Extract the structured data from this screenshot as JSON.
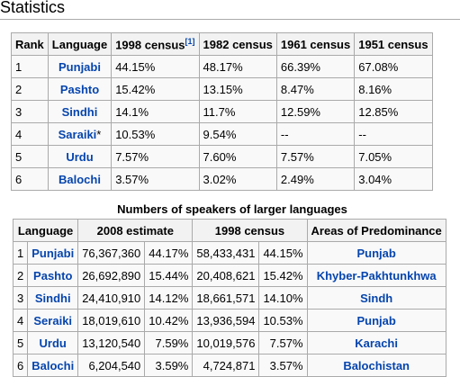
{
  "heading": "Statistics",
  "table1": {
    "headers": [
      "Rank",
      "Language",
      {
        "text": "1998 census",
        "note": "[1]"
      },
      "1982 census",
      "1961 census",
      "1951 census"
    ],
    "rows": [
      [
        "1",
        "Punjabi",
        "44.15%",
        "48.17%",
        "66.39%",
        "67.08%"
      ],
      [
        "2",
        "Pashto",
        "15.42%",
        "13.15%",
        "8.47%",
        "8.16%"
      ],
      [
        "3",
        "Sindhi",
        "14.1%",
        "11.7%",
        "12.59%",
        "12.85%"
      ],
      [
        "4",
        {
          "text": "Saraiki",
          "note": "*"
        },
        "10.53%",
        "9.54%",
        "--",
        "--"
      ],
      [
        "5",
        "Urdu",
        "7.57%",
        "7.60%",
        "7.57%",
        "7.05%"
      ],
      [
        "6",
        "Balochi",
        "3.57%",
        "3.02%",
        "2.49%",
        "3.04%"
      ]
    ]
  },
  "table2": {
    "caption": "Numbers of speakers of larger languages",
    "headers": [
      "Language",
      "2008 estimate",
      "1998 census",
      "Areas of Predominance"
    ],
    "rows": [
      [
        "1",
        "Punjabi",
        "76,367,360",
        "44.17%",
        "58,433,431",
        "44.15%",
        "Punjab"
      ],
      [
        "2",
        "Pashto",
        "26,692,890",
        "15.44%",
        "20,408,621",
        "15.42%",
        "Khyber-Pakhtunkhwa"
      ],
      [
        "3",
        "Sindhi",
        "24,410,910",
        "14.12%",
        "18,661,571",
        "14.10%",
        "Sindh"
      ],
      [
        "4",
        "Seraiki",
        "18,019,610",
        "10.42%",
        "13,936,594",
        "10.53%",
        "Punjab"
      ],
      [
        "5",
        "Urdu",
        "13,120,540",
        "7.59%",
        "10,019,576",
        "7.57%",
        "Karachi"
      ],
      [
        "6",
        "Balochi",
        "6,204,540",
        "3.59%",
        "4,724,871",
        "3.57%",
        "Balochistan"
      ]
    ]
  }
}
